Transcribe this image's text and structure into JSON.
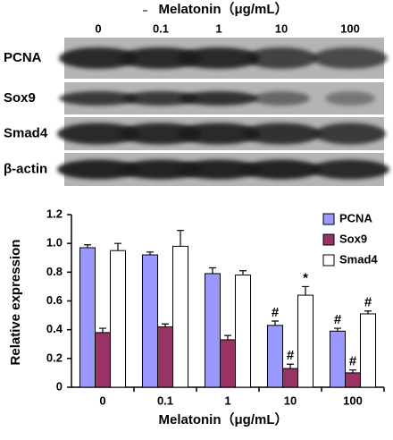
{
  "blot": {
    "header": "Melatonin（μg/mL）",
    "lanes": [
      "0",
      "0.1",
      "1",
      "10",
      "100"
    ],
    "rows": [
      "PCNA",
      "Sox9",
      "Smad4",
      "β-actin"
    ]
  },
  "chart_data": {
    "type": "bar",
    "ylabel": "Relative expression",
    "xlabel": "Melatonin（μg/mL）",
    "categories": [
      "0",
      "0.1",
      "1",
      "10",
      "100"
    ],
    "series": [
      {
        "name": "PCNA",
        "color": "#9999ff",
        "values": [
          0.97,
          0.92,
          0.79,
          0.43,
          0.39
        ],
        "errors": [
          0.02,
          0.02,
          0.04,
          0.03,
          0.02
        ],
        "annotations": [
          null,
          null,
          null,
          "#",
          "#"
        ]
      },
      {
        "name": "Sox9",
        "color": "#993366",
        "values": [
          0.38,
          0.42,
          0.33,
          0.13,
          0.1
        ],
        "errors": [
          0.03,
          0.02,
          0.03,
          0.03,
          0.02
        ],
        "annotations": [
          null,
          null,
          null,
          "#",
          "#"
        ]
      },
      {
        "name": "Smad4",
        "color": "#ffffff",
        "values": [
          0.95,
          0.98,
          0.78,
          0.64,
          0.51
        ],
        "errors": [
          0.05,
          0.11,
          0.03,
          0.06,
          0.02
        ],
        "annotations": [
          null,
          null,
          null,
          "*",
          "#"
        ]
      }
    ],
    "ylim": [
      0,
      1.2
    ],
    "yticks": [
      0,
      0.2,
      0.4,
      0.6,
      0.8,
      {
        "value": 1,
        "label": "1.0"
      },
      1.2
    ],
    "legend": "upper right"
  }
}
